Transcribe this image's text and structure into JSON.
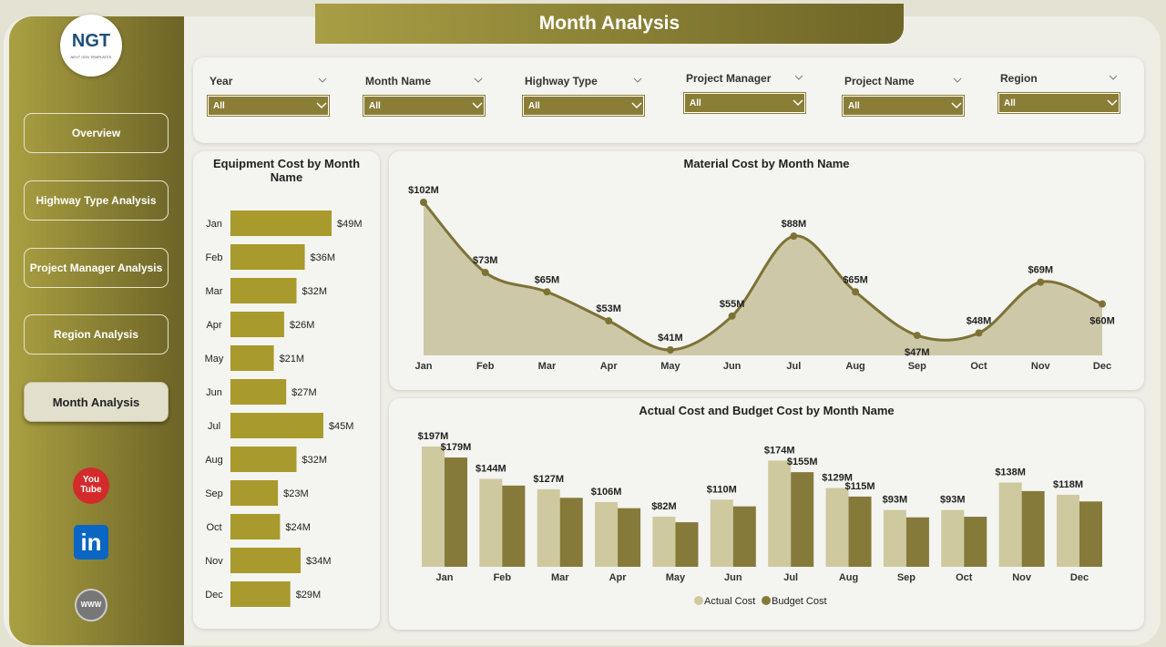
{
  "header": {
    "title": "Month Analysis"
  },
  "logo": {
    "text": "NGT",
    "subtitle": "NEXT GEN TEMPLATES"
  },
  "nav": {
    "items": [
      "Overview",
      "Highway Type Analysis",
      "Project Manager Analysis",
      "Region Analysis",
      "Month Analysis"
    ],
    "active": 4
  },
  "social": {
    "youtube": [
      "You",
      "Tube"
    ],
    "linkedin": "in",
    "web": "WWW"
  },
  "filters": [
    {
      "label": "Year",
      "value": "All"
    },
    {
      "label": "Month Name",
      "value": "All"
    },
    {
      "label": "Highway Type",
      "value": "All"
    },
    {
      "label": "Project Manager",
      "value": "All"
    },
    {
      "label": "Project Name",
      "value": "All"
    },
    {
      "label": "Region",
      "value": "All"
    }
  ],
  "chart_data": [
    {
      "type": "hbar",
      "title": "Equipment Cost by Month Name",
      "categories": [
        "Jan",
        "Feb",
        "Mar",
        "Apr",
        "May",
        "Jun",
        "Jul",
        "Aug",
        "Sep",
        "Oct",
        "Nov",
        "Dec"
      ],
      "values": [
        49,
        36,
        32,
        26,
        21,
        27,
        45,
        32,
        23,
        24,
        34,
        29
      ],
      "value_labels": [
        "$49M",
        "$36M",
        "$32M",
        "$26M",
        "$21M",
        "$27M",
        "$45M",
        "$32M",
        "$23M",
        "$24M",
        "$34M",
        "$29M"
      ],
      "color": "#a89a2c"
    },
    {
      "type": "area",
      "title": "Material Cost by Month Name",
      "categories": [
        "Jan",
        "Feb",
        "Mar",
        "Apr",
        "May",
        "Jun",
        "Jul",
        "Aug",
        "Sep",
        "Oct",
        "Nov",
        "Dec"
      ],
      "values": [
        102,
        73,
        65,
        53,
        41,
        55,
        88,
        65,
        47,
        48,
        69,
        60
      ],
      "value_labels": [
        "$102M",
        "$73M",
        "$65M",
        "$53M",
        "$41M",
        "$55M",
        "$88M",
        "$65M",
        "$47M",
        "$48M",
        "$69M",
        "$60M"
      ],
      "color": "#7d7235",
      "fill": "#cdc8a8"
    },
    {
      "type": "bar",
      "title": "Actual Cost and Budget Cost by Month Name",
      "categories": [
        "Jan",
        "Feb",
        "Mar",
        "Apr",
        "May",
        "Jun",
        "Jul",
        "Aug",
        "Sep",
        "Oct",
        "Nov",
        "Dec"
      ],
      "series": [
        {
          "name": "Actual Cost",
          "color": "#cfc9a0",
          "values": [
            197,
            144,
            127,
            106,
            82,
            110,
            174,
            129,
            93,
            93,
            138,
            118
          ],
          "value_labels": [
            "$197M",
            "$144M",
            "$127M",
            "$106M",
            "$82M",
            "$110M",
            "$174M",
            "$129M",
            "$93M",
            "$93M",
            "$138M",
            "$118M"
          ]
        },
        {
          "name": "Budget Cost",
          "color": "#857a3a",
          "values": [
            179,
            133,
            113,
            96,
            73,
            99,
            155,
            115,
            81,
            82,
            124,
            107
          ],
          "value_labels": [
            "$179M",
            null,
            null,
            null,
            null,
            null,
            "$155M",
            "$115M",
            null,
            null,
            null,
            null
          ]
        }
      ],
      "legend": "bottom"
    }
  ]
}
